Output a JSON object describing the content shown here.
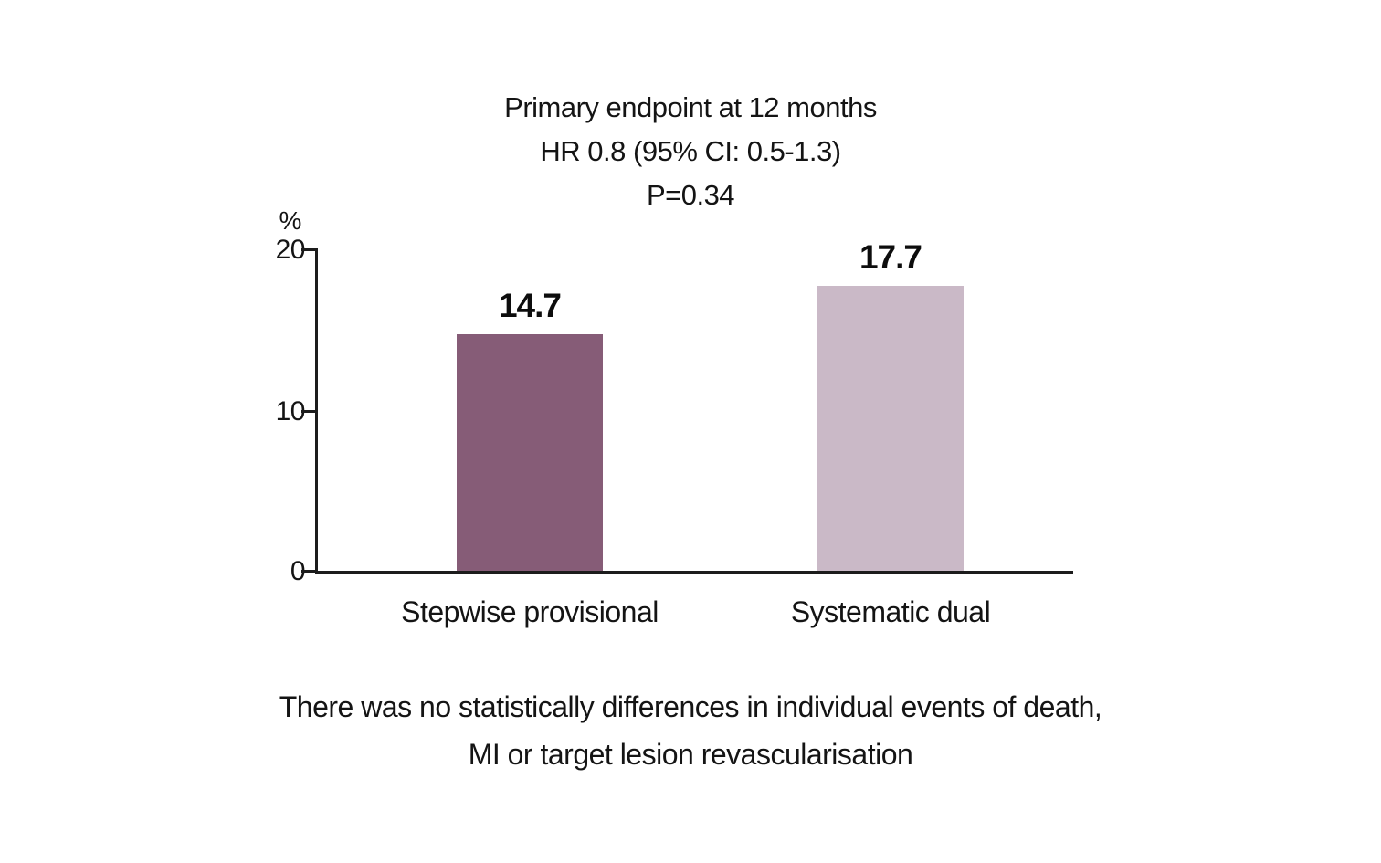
{
  "title": {
    "line1": "Primary endpoint at 12 months",
    "line2": "HR 0.8 (95% CI: 0.5-1.3)",
    "line3": "P=0.34"
  },
  "chart_data": {
    "type": "bar",
    "title": "Primary endpoint at 12 months HR 0.8 (95% CI: 0.5-1.3) P=0.34",
    "categories": [
      "Stepwise provisional",
      "Systematic dual"
    ],
    "values": [
      14.7,
      17.7
    ],
    "data_labels": [
      "14.7",
      "17.7"
    ],
    "bar_colors": [
      "#865c77",
      "#cab9c7"
    ],
    "axis_color": "#1c1c1c",
    "ylabel": "%",
    "ylim": [
      0,
      20
    ],
    "yticks": [
      0,
      10,
      20
    ],
    "grid": false,
    "legend_position": "none"
  },
  "footnote": {
    "line1": "There was no statistically differences in individual events of death,",
    "line2": "MI or target lesion revascularisation"
  }
}
